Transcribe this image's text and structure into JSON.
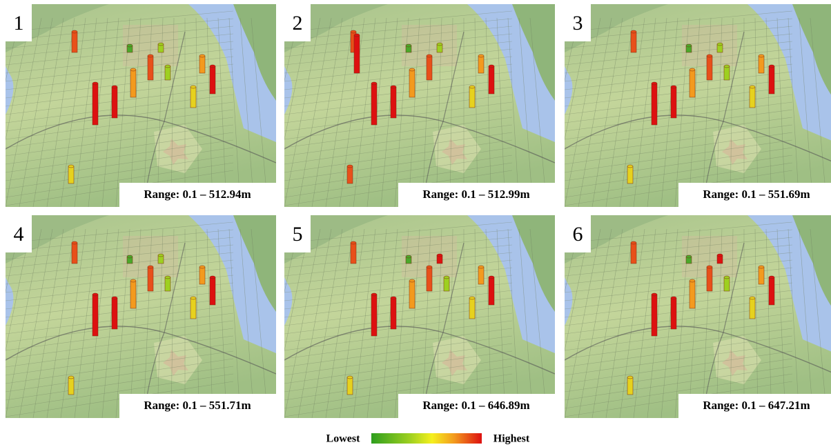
{
  "panels": [
    {
      "number": "1",
      "range": "Range: 0.1 – 512.94m"
    },
    {
      "number": "2",
      "range": "Range: 0.1 – 512.99m"
    },
    {
      "number": "3",
      "range": "Range: 0.1 – 551.69m"
    },
    {
      "number": "4",
      "range": "Range: 0.1 – 551.71m"
    },
    {
      "number": "5",
      "range": "Range: 0.1 – 646.89m"
    },
    {
      "number": "6",
      "range": "Range: 0.1 – 647.21m"
    }
  ],
  "legend": {
    "low": "Lowest",
    "high": "Highest"
  }
}
